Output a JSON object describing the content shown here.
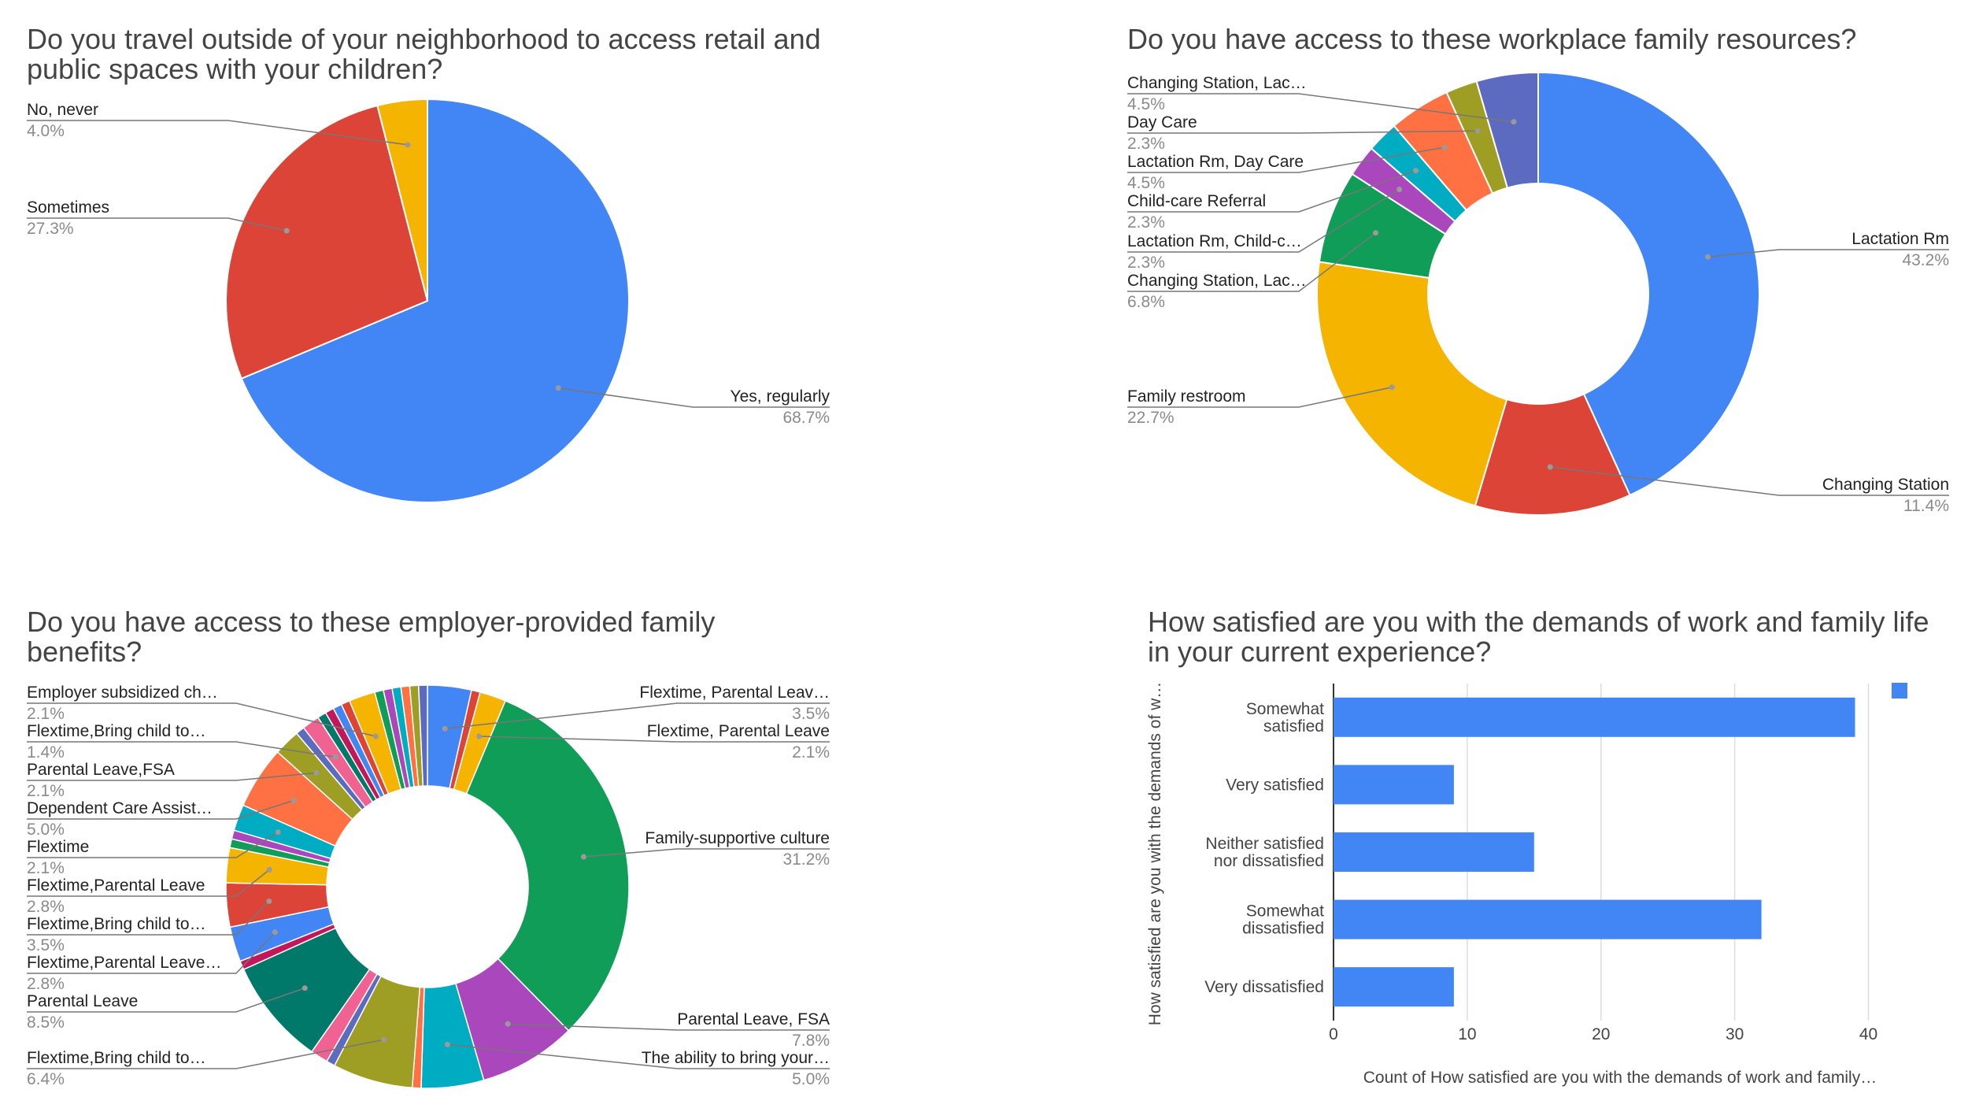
{
  "chart_data": [
    {
      "type": "pie",
      "title": "Do you travel outside of your neighborhood to access retail and public spaces with your children?",
      "title_lines": [
        "Do you travel outside of your neighborhood to access retail and",
        "public spaces with your children?"
      ],
      "slices": [
        {
          "label": "Yes, regularly",
          "value": 68.7,
          "display": "68.7%",
          "color": "#4285f4"
        },
        {
          "label": "Sometimes",
          "value": 27.3,
          "display": "27.3%",
          "color": "#db4437"
        },
        {
          "label": "No, never",
          "value": 4.0,
          "display": "4.0%",
          "color": "#f4b400"
        }
      ]
    },
    {
      "type": "pie",
      "donut": true,
      "title": "Do you have access to these workplace family resources?",
      "title_lines": [
        "Do you have access to these workplace family resources?"
      ],
      "slices": [
        {
          "label": "Lactation Rm",
          "value": 43.2,
          "display": "43.2%",
          "color": "#4285f4"
        },
        {
          "label": "Changing Station",
          "value": 11.4,
          "display": "11.4%",
          "color": "#db4437"
        },
        {
          "label": "Family restroom",
          "value": 22.7,
          "display": "22.7%",
          "color": "#f4b400"
        },
        {
          "label": "Changing Station, Lac…",
          "value": 6.8,
          "display": "6.8%",
          "color": "#0f9d58"
        },
        {
          "label": "Lactation Rm, Child-c…",
          "value": 2.3,
          "display": "2.3%",
          "color": "#ab47bc"
        },
        {
          "label": "Child-care Referral",
          "value": 2.3,
          "display": "2.3%",
          "color": "#00acc1"
        },
        {
          "label": "Lactation Rm, Day Care",
          "value": 4.5,
          "display": "4.5%",
          "color": "#ff7043"
        },
        {
          "label": "Day Care",
          "value": 2.3,
          "display": "2.3%",
          "color": "#9e9d24"
        },
        {
          "label": "Changing Station, Lac…",
          "value": 4.5,
          "display": "4.5%",
          "color": "#5c6bc0"
        }
      ]
    },
    {
      "type": "pie",
      "donut": true,
      "title": "Do you have access to these employer-provided family benefits?",
      "title_lines": [
        "Do you have access to these employer-provided family",
        "benefits?"
      ],
      "slices": [
        {
          "label": "Flextime, Parental Leav…",
          "value": 3.5,
          "display": "3.5%",
          "color": "#4285f4"
        },
        {
          "label": "",
          "value": 0.7,
          "color": "#db4437"
        },
        {
          "label": "Flextime, Parental Leave",
          "value": 2.1,
          "display": "2.1%",
          "color": "#f4b400"
        },
        {
          "label": "Family-supportive culture",
          "value": 31.2,
          "display": "31.2%",
          "color": "#0f9d58"
        },
        {
          "label": "Parental Leave, FSA",
          "value": 7.8,
          "display": "7.8%",
          "color": "#ab47bc"
        },
        {
          "label": "The ability to bring your…",
          "value": 5.0,
          "display": "5.0%",
          "color": "#00acc1"
        },
        {
          "label": "",
          "value": 0.7,
          "color": "#ff7043"
        },
        {
          "label": "Flextime,Bring child to…",
          "value": 6.4,
          "display": "6.4%",
          "color": "#9e9d24"
        },
        {
          "label": "",
          "value": 0.7,
          "color": "#5c6bc0"
        },
        {
          "label": "",
          "value": 1.4,
          "color": "#f06292"
        },
        {
          "label": "Parental Leave",
          "value": 8.5,
          "display": "8.5%",
          "color": "#00796b"
        },
        {
          "label": "",
          "value": 0.7,
          "color": "#c2185b"
        },
        {
          "label": "Flextime,Parental Leave…",
          "value": 2.8,
          "display": "2.8%",
          "color": "#4285f4"
        },
        {
          "label": "Flextime,Bring child to…",
          "value": 3.5,
          "display": "3.5%",
          "color": "#db4437"
        },
        {
          "label": "Flextime,Parental Leave",
          "value": 2.8,
          "display": "2.8%",
          "color": "#f4b400"
        },
        {
          "label": "",
          "value": 0.7,
          "color": "#0f9d58"
        },
        {
          "label": "",
          "value": 0.7,
          "color": "#ab47bc"
        },
        {
          "label": "Flextime",
          "value": 2.1,
          "display": "2.1%",
          "color": "#00acc1"
        },
        {
          "label": "Dependent Care Assist…",
          "value": 5.0,
          "display": "5.0%",
          "color": "#ff7043"
        },
        {
          "label": "Parental Leave,FSA",
          "value": 2.1,
          "display": "2.1%",
          "color": "#9e9d24"
        },
        {
          "label": "",
          "value": 0.7,
          "color": "#5c6bc0"
        },
        {
          "label": "Flextime,Bring child to…",
          "value": 1.4,
          "display": "1.4%",
          "color": "#f06292"
        },
        {
          "label": "",
          "value": 0.7,
          "color": "#00796b"
        },
        {
          "label": "",
          "value": 0.7,
          "color": "#c2185b"
        },
        {
          "label": "",
          "value": 0.7,
          "color": "#4285f4"
        },
        {
          "label": "",
          "value": 0.7,
          "color": "#db4437"
        },
        {
          "label": "Employer subsidized ch…",
          "value": 2.1,
          "display": "2.1%",
          "color": "#f4b400"
        },
        {
          "label": "",
          "value": 0.7,
          "color": "#0f9d58"
        },
        {
          "label": "",
          "value": 0.7,
          "color": "#ab47bc"
        },
        {
          "label": "",
          "value": 0.7,
          "color": "#00acc1"
        },
        {
          "label": "",
          "value": 0.7,
          "color": "#ff7043"
        },
        {
          "label": "",
          "value": 0.7,
          "color": "#9e9d24"
        },
        {
          "label": "",
          "value": 0.7,
          "color": "#5c6bc0"
        }
      ]
    },
    {
      "type": "bar",
      "orientation": "horizontal",
      "title": "How satisfied are you with the demands of work and family life in your current experience?",
      "title_lines": [
        "How satisfied are you with the demands of work and family life",
        "in your current experience?"
      ],
      "categories": [
        [
          "Somewhat",
          "satisfied"
        ],
        [
          "Very satisfied"
        ],
        [
          "Neither satisfied",
          "nor dissatisfied"
        ],
        [
          "Somewhat",
          "dissatisfied"
        ],
        [
          "Very dissatisfied"
        ]
      ],
      "values": [
        39,
        9,
        15,
        32,
        9
      ],
      "xlim": [
        0,
        40
      ],
      "xticks": [
        0,
        10,
        20,
        30,
        40
      ],
      "xlabel": "Count of How satisfied are you with the demands of work and family…",
      "ylabel": "How satisfied are you with the demands of w…",
      "grid": true,
      "legend": "top-right",
      "color": "#4285f4"
    }
  ]
}
